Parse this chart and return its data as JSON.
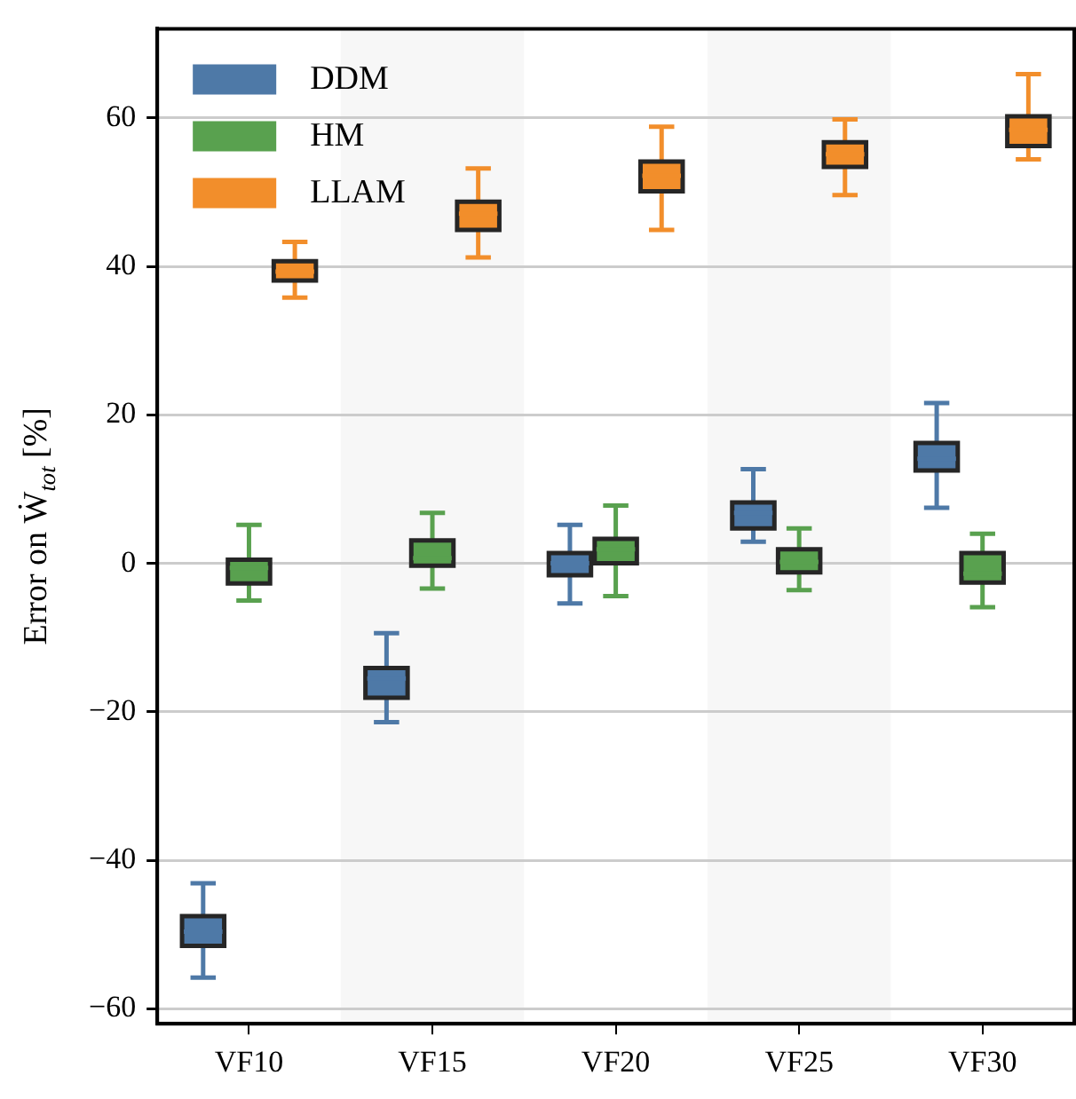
{
  "chart_data": {
    "type": "box",
    "ylabel": "Error on Ẇ$_{tot}$ [%]",
    "categories": [
      "VF10",
      "VF15",
      "VF20",
      "VF25",
      "VF30"
    ],
    "ylim": [
      -62,
      72
    ],
    "yticks": [
      -60,
      -40,
      -20,
      0,
      20,
      40,
      60
    ],
    "grid": "y",
    "legend": "top left",
    "bands": [
      {
        "axis": "x",
        "from": "VF15",
        "to": "VF15",
        "color": "#f7f7f7"
      },
      {
        "axis": "x",
        "from": "VF25",
        "to": "VF25",
        "color": "#f7f7f7"
      }
    ],
    "series": [
      {
        "name": "DDM",
        "color": "#4e79a7",
        "boxes": [
          {
            "low": -55.8,
            "q1": -51.5,
            "median": -49.6,
            "q3": -47.5,
            "high": -43.1
          },
          {
            "low": -21.4,
            "q1": -18.1,
            "median": -15.5,
            "q3": -14.1,
            "high": -9.4
          },
          {
            "low": -5.4,
            "q1": -1.6,
            "median": 0,
            "q3": 1.4,
            "high": 5.2
          },
          {
            "low": 2.9,
            "q1": 4.7,
            "median": 6.8,
            "q3": 8.2,
            "high": 12.7
          },
          {
            "low": 7.5,
            "q1": 12.5,
            "median": 14.1,
            "q3": 16.2,
            "high": 21.6
          }
        ]
      },
      {
        "name": "HM",
        "color": "#59a14f",
        "boxes": [
          {
            "low": -5,
            "q1": -2.7,
            "median": -0.6,
            "q3": 0.5,
            "high": 5.2
          },
          {
            "low": -3.4,
            "q1": -0.3,
            "median": 0.7,
            "q3": 3.1,
            "high": 6.8
          },
          {
            "low": -4.4,
            "q1": 0,
            "median": 1.9,
            "q3": 3.3,
            "high": 7.8
          },
          {
            "low": -3.6,
            "q1": -1.2,
            "median": 0.2,
            "q3": 1.9,
            "high": 4.7
          },
          {
            "low": -5.9,
            "q1": -2.6,
            "median": -1.4,
            "q3": 1.4,
            "high": 4
          }
        ]
      },
      {
        "name": "LLAM",
        "color": "#f28e2b",
        "boxes": [
          {
            "low": 35.8,
            "q1": 38.1,
            "median": 39.3,
            "q3": 40.7,
            "high": 43.3
          },
          {
            "low": 41.2,
            "q1": 44.9,
            "median": 47.1,
            "q3": 48.7,
            "high": 53.2
          },
          {
            "low": 44.9,
            "q1": 50.1,
            "median": 52.2,
            "q3": 54.1,
            "high": 58.8
          },
          {
            "low": 49.6,
            "q1": 53.4,
            "median": 55.1,
            "q3": 56.7,
            "high": 59.8
          },
          {
            "low": 54.4,
            "q1": 56.2,
            "median": 58.4,
            "q3": 60.2,
            "high": 65.9
          }
        ]
      }
    ]
  }
}
